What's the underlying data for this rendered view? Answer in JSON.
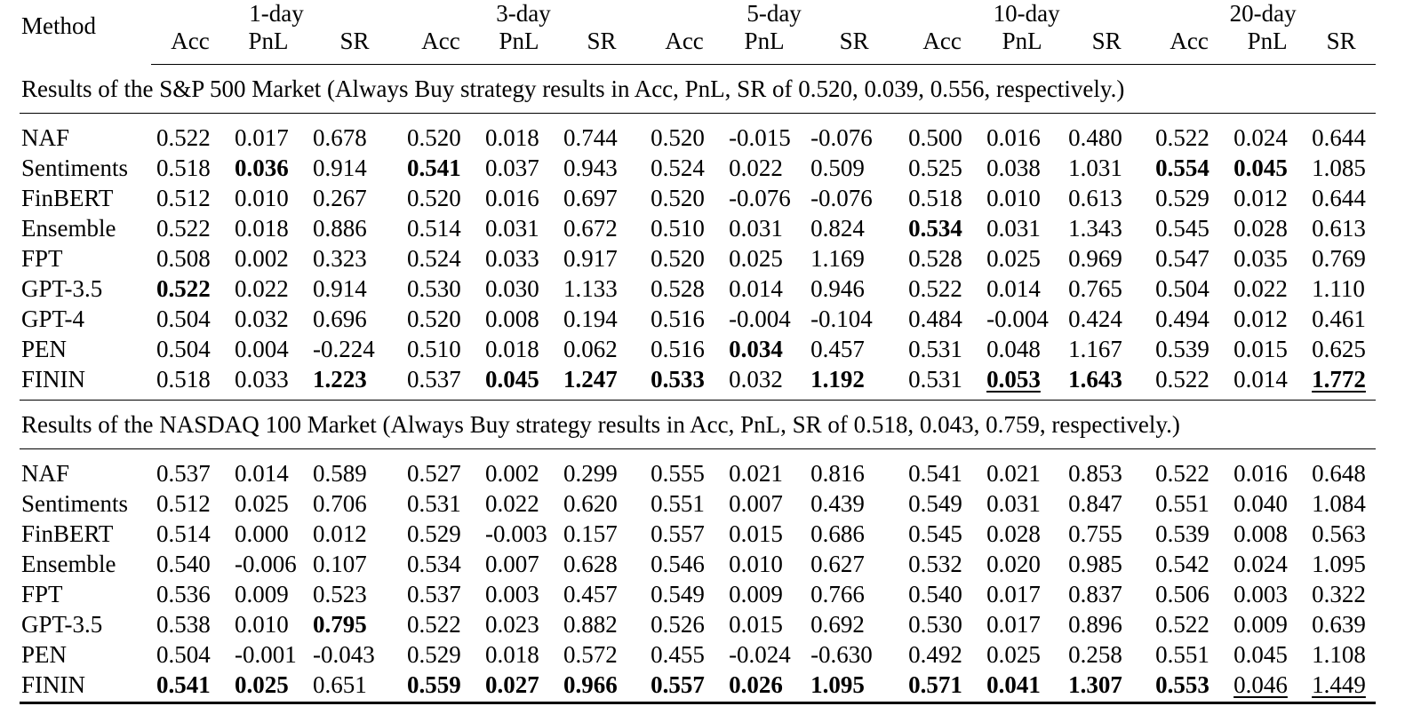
{
  "header": {
    "method_label": "Method",
    "horizons": [
      "1-day",
      "3-day",
      "5-day",
      "10-day",
      "20-day"
    ],
    "metrics": [
      "Acc",
      "PnL",
      "SR"
    ]
  },
  "sections": [
    {
      "caption": "Results of the S&P 500 Market (Always Buy strategy results in Acc, PnL, SR of 0.520, 0.039, 0.556, respectively.)",
      "rows": [
        {
          "method": "NAF",
          "values": [
            "0.522",
            "0.017",
            "0.678",
            "0.520",
            "0.018",
            "0.744",
            "0.520",
            "-0.015",
            "-0.076",
            "0.500",
            "0.016",
            "0.480",
            "0.522",
            "0.024",
            "0.644"
          ],
          "bold": [],
          "underline": []
        },
        {
          "method": "Sentiments",
          "values": [
            "0.518",
            "0.036",
            "0.914",
            "0.541",
            "0.037",
            "0.943",
            "0.524",
            "0.022",
            "0.509",
            "0.525",
            "0.038",
            "1.031",
            "0.554",
            "0.045",
            "1.085"
          ],
          "bold": [
            1,
            3,
            12,
            13
          ],
          "underline": []
        },
        {
          "method": "FinBERT",
          "values": [
            "0.512",
            "0.010",
            "0.267",
            "0.520",
            "0.016",
            "0.697",
            "0.520",
            "-0.076",
            "-0.076",
            "0.518",
            "0.010",
            "0.613",
            "0.529",
            "0.012",
            "0.644"
          ],
          "bold": [],
          "underline": []
        },
        {
          "method": "Ensemble",
          "values": [
            "0.522",
            "0.018",
            "0.886",
            "0.514",
            "0.031",
            "0.672",
            "0.510",
            "0.031",
            "0.824",
            "0.534",
            "0.031",
            "1.343",
            "0.545",
            "0.028",
            "0.613"
          ],
          "bold": [
            9
          ],
          "underline": []
        },
        {
          "method": "FPT",
          "values": [
            "0.508",
            "0.002",
            "0.323",
            "0.524",
            "0.033",
            "0.917",
            "0.520",
            "0.025",
            "1.169",
            "0.528",
            "0.025",
            "0.969",
            "0.547",
            "0.035",
            "0.769"
          ],
          "bold": [],
          "underline": []
        },
        {
          "method": "GPT-3.5",
          "values": [
            "0.522",
            "0.022",
            "0.914",
            "0.530",
            "0.030",
            "1.133",
            "0.528",
            "0.014",
            "0.946",
            "0.522",
            "0.014",
            "0.765",
            "0.504",
            "0.022",
            "1.110"
          ],
          "bold": [
            0
          ],
          "underline": []
        },
        {
          "method": "GPT-4",
          "values": [
            "0.504",
            "0.032",
            "0.696",
            "0.520",
            "0.008",
            "0.194",
            "0.516",
            "-0.004",
            "-0.104",
            "0.484",
            "-0.004",
            "0.424",
            "0.494",
            "0.012",
            "0.461"
          ],
          "bold": [],
          "underline": []
        },
        {
          "method": "PEN",
          "values": [
            "0.504",
            "0.004",
            "-0.224",
            "0.510",
            "0.018",
            "0.062",
            "0.516",
            "0.034",
            "0.457",
            "0.531",
            "0.048",
            "1.167",
            "0.539",
            "0.015",
            "0.625"
          ],
          "bold": [
            7
          ],
          "underline": []
        },
        {
          "method": "FININ",
          "values": [
            "0.518",
            "0.033",
            "1.223",
            "0.537",
            "0.045",
            "1.247",
            "0.533",
            "0.032",
            "1.192",
            "0.531",
            "0.053",
            "1.643",
            "0.522",
            "0.014",
            "1.772"
          ],
          "bold": [
            2,
            4,
            5,
            6,
            8,
            10,
            11,
            14
          ],
          "underline": [
            10,
            14
          ]
        }
      ]
    },
    {
      "caption": "Results of the NASDAQ 100 Market (Always Buy strategy results in Acc, PnL, SR of 0.518, 0.043, 0.759, respectively.)",
      "rows": [
        {
          "method": "NAF",
          "values": [
            "0.537",
            "0.014",
            "0.589",
            "0.527",
            "0.002",
            "0.299",
            "0.555",
            "0.021",
            "0.816",
            "0.541",
            "0.021",
            "0.853",
            "0.522",
            "0.016",
            "0.648"
          ],
          "bold": [],
          "underline": []
        },
        {
          "method": "Sentiments",
          "values": [
            "0.512",
            "0.025",
            "0.706",
            "0.531",
            "0.022",
            "0.620",
            "0.551",
            "0.007",
            "0.439",
            "0.549",
            "0.031",
            "0.847",
            "0.551",
            "0.040",
            "1.084"
          ],
          "bold": [],
          "underline": []
        },
        {
          "method": "FinBERT",
          "values": [
            "0.514",
            "0.000",
            "0.012",
            "0.529",
            "-0.003",
            "0.157",
            "0.557",
            "0.015",
            "0.686",
            "0.545",
            "0.028",
            "0.755",
            "0.539",
            "0.008",
            "0.563"
          ],
          "bold": [],
          "underline": []
        },
        {
          "method": "Ensemble",
          "values": [
            "0.540",
            "-0.006",
            "0.107",
            "0.534",
            "0.007",
            "0.628",
            "0.546",
            "0.010",
            "0.627",
            "0.532",
            "0.020",
            "0.985",
            "0.542",
            "0.024",
            "1.095"
          ],
          "bold": [],
          "underline": []
        },
        {
          "method": "FPT",
          "values": [
            "0.536",
            "0.009",
            "0.523",
            "0.537",
            "0.003",
            "0.457",
            "0.549",
            "0.009",
            "0.766",
            "0.540",
            "0.017",
            "0.837",
            "0.506",
            "0.003",
            "0.322"
          ],
          "bold": [],
          "underline": []
        },
        {
          "method": "GPT-3.5",
          "values": [
            "0.538",
            "0.010",
            "0.795",
            "0.522",
            "0.023",
            "0.882",
            "0.526",
            "0.015",
            "0.692",
            "0.530",
            "0.017",
            "0.896",
            "0.522",
            "0.009",
            "0.639"
          ],
          "bold": [
            2
          ],
          "underline": []
        },
        {
          "method": "PEN",
          "values": [
            "0.504",
            "-0.001",
            "-0.043",
            "0.529",
            "0.018",
            "0.572",
            "0.455",
            "-0.024",
            "-0.630",
            "0.492",
            "0.025",
            "0.258",
            "0.551",
            "0.045",
            "1.108"
          ],
          "bold": [],
          "underline": []
        },
        {
          "method": "FININ",
          "values": [
            "0.541",
            "0.025",
            "0.651",
            "0.559",
            "0.027",
            "0.966",
            "0.557",
            "0.026",
            "1.095",
            "0.571",
            "0.041",
            "1.307",
            "0.553",
            "0.046",
            "1.449"
          ],
          "bold": [
            0,
            1,
            3,
            4,
            5,
            6,
            7,
            8,
            9,
            10,
            11,
            12
          ],
          "underline": [
            13,
            14
          ]
        }
      ]
    }
  ]
}
